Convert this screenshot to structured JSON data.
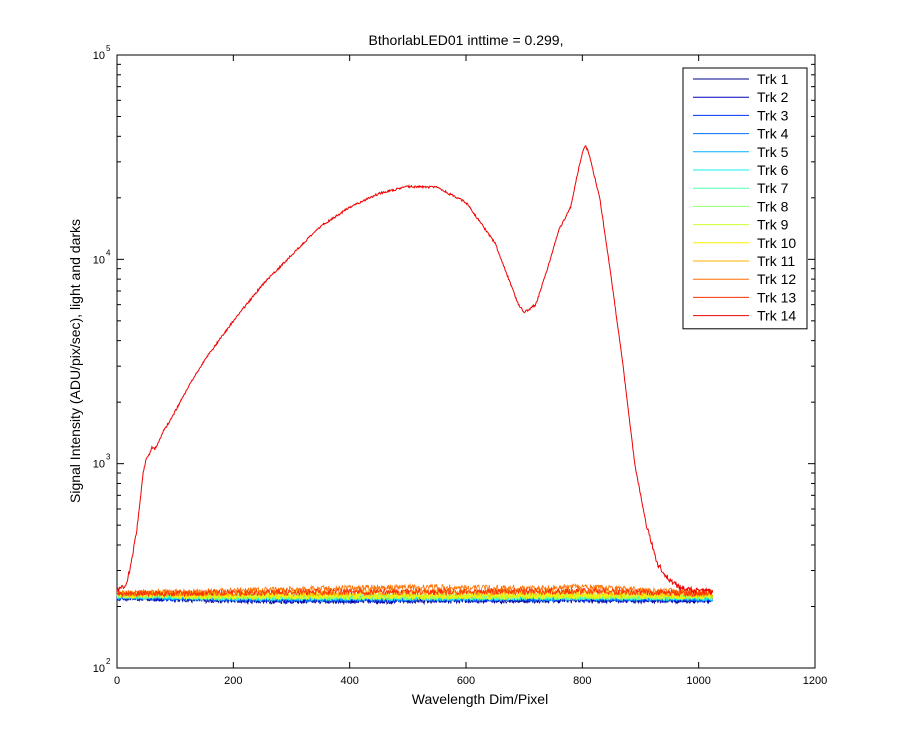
{
  "chart_data": {
    "type": "line",
    "title": "BthorlabLED01 inttime = 0.299,",
    "xlabel": "Wavelength Dim/Pixel",
    "ylabel": "Signal Intensity (ADU/pix/sec), light and darks",
    "xlim": [
      0,
      1200
    ],
    "ylim": [
      100,
      100000
    ],
    "yscale": "log",
    "grid": false,
    "legend_position": "top-right",
    "xticks": [
      "0",
      "200",
      "400",
      "600",
      "800",
      "1000",
      "1200"
    ],
    "yticks": [
      {
        "base": "10",
        "exp": "2"
      },
      {
        "base": "10",
        "exp": "3"
      },
      {
        "base": "10",
        "exp": "4"
      },
      {
        "base": "10",
        "exp": "5"
      }
    ],
    "series": [
      {
        "name": "Trk 1",
        "color": "#00008f",
        "points": [
          [
            0,
            221
          ],
          [
            200,
            214
          ],
          [
            400,
            213
          ],
          [
            600,
            214
          ],
          [
            800,
            215
          ],
          [
            1024,
            214
          ]
        ]
      },
      {
        "name": "Trk 2",
        "color": "#0000bf",
        "points": [
          [
            0,
            223
          ],
          [
            200,
            216
          ],
          [
            400,
            215
          ],
          [
            600,
            216
          ],
          [
            800,
            217
          ],
          [
            1024,
            216
          ]
        ]
      },
      {
        "name": "Trk 3",
        "color": "#0030ff",
        "points": [
          [
            0,
            222
          ],
          [
            200,
            218
          ],
          [
            400,
            217
          ],
          [
            600,
            218
          ],
          [
            800,
            218
          ],
          [
            1024,
            217
          ]
        ]
      },
      {
        "name": "Trk 4",
        "color": "#0070ff",
        "points": [
          [
            0,
            224
          ],
          [
            200,
            219
          ],
          [
            400,
            218
          ],
          [
            600,
            219
          ],
          [
            800,
            220
          ],
          [
            1024,
            219
          ]
        ]
      },
      {
        "name": "Trk 5",
        "color": "#00b0ff",
        "points": [
          [
            0,
            225
          ],
          [
            200,
            220
          ],
          [
            400,
            220
          ],
          [
            600,
            220
          ],
          [
            800,
            221
          ],
          [
            1024,
            220
          ]
        ]
      },
      {
        "name": "Trk 6",
        "color": "#10f0ef",
        "points": [
          [
            0,
            226
          ],
          [
            200,
            221
          ],
          [
            400,
            221
          ],
          [
            600,
            221
          ],
          [
            800,
            222
          ],
          [
            1024,
            221
          ]
        ]
      },
      {
        "name": "Trk 7",
        "color": "#50ffaf",
        "points": [
          [
            0,
            226
          ],
          [
            200,
            222
          ],
          [
            400,
            222
          ],
          [
            600,
            222
          ],
          [
            800,
            223
          ],
          [
            1024,
            222
          ]
        ]
      },
      {
        "name": "Trk 8",
        "color": "#90ff6f",
        "points": [
          [
            0,
            227
          ],
          [
            200,
            223
          ],
          [
            400,
            223
          ],
          [
            600,
            223
          ],
          [
            800,
            224
          ],
          [
            1024,
            223
          ]
        ]
      },
      {
        "name": "Trk 9",
        "color": "#d0ff2f",
        "points": [
          [
            0,
            228
          ],
          [
            200,
            224
          ],
          [
            400,
            224
          ],
          [
            600,
            224
          ],
          [
            800,
            225
          ],
          [
            1024,
            224
          ]
        ]
      },
      {
        "name": "Trk 10",
        "color": "#ffef00",
        "points": [
          [
            0,
            229
          ],
          [
            200,
            225
          ],
          [
            400,
            225
          ],
          [
            600,
            225
          ],
          [
            800,
            226
          ],
          [
            1024,
            225
          ]
        ]
      },
      {
        "name": "Trk 11",
        "color": "#ffaf00",
        "points": [
          [
            0,
            232
          ],
          [
            200,
            232
          ],
          [
            400,
            234
          ],
          [
            600,
            234
          ],
          [
            800,
            236
          ],
          [
            1024,
            230
          ]
        ]
      },
      {
        "name": "Trk 12",
        "color": "#ff6f00",
        "points": [
          [
            0,
            233
          ],
          [
            100,
            235
          ],
          [
            200,
            238
          ],
          [
            300,
            242
          ],
          [
            400,
            246
          ],
          [
            500,
            248
          ],
          [
            600,
            247
          ],
          [
            700,
            245
          ],
          [
            790,
            249
          ],
          [
            850,
            245
          ],
          [
            950,
            238
          ],
          [
            1024,
            233
          ]
        ]
      },
      {
        "name": "Trk 13",
        "color": "#ff2f00",
        "points": [
          [
            0,
            231
          ],
          [
            200,
            233
          ],
          [
            400,
            236
          ],
          [
            600,
            236
          ],
          [
            800,
            238
          ],
          [
            1024,
            231
          ]
        ]
      },
      {
        "name": "Trk 14",
        "color": "#ef0000",
        "points": [
          [
            0,
            240
          ],
          [
            15,
            250
          ],
          [
            25,
            330
          ],
          [
            35,
            500
          ],
          [
            45,
            900
          ],
          [
            50,
            1050
          ],
          [
            55,
            1100
          ],
          [
            60,
            1200
          ],
          [
            65,
            1180
          ],
          [
            70,
            1250
          ],
          [
            80,
            1450
          ],
          [
            90,
            1600
          ],
          [
            100,
            1800
          ],
          [
            120,
            2300
          ],
          [
            150,
            3200
          ],
          [
            200,
            5000
          ],
          [
            250,
            7500
          ],
          [
            300,
            10500
          ],
          [
            350,
            14500
          ],
          [
            400,
            18000
          ],
          [
            450,
            21000
          ],
          [
            500,
            22700
          ],
          [
            550,
            22500
          ],
          [
            600,
            19000
          ],
          [
            650,
            12000
          ],
          [
            690,
            6000
          ],
          [
            700,
            5500
          ],
          [
            720,
            6000
          ],
          [
            740,
            9000
          ],
          [
            760,
            14000
          ],
          [
            780,
            18000
          ],
          [
            790,
            25000
          ],
          [
            800,
            33000
          ],
          [
            805,
            36000
          ],
          [
            810,
            34000
          ],
          [
            830,
            20000
          ],
          [
            850,
            8000
          ],
          [
            870,
            3000
          ],
          [
            890,
            1000
          ],
          [
            910,
            500
          ],
          [
            930,
            320
          ],
          [
            950,
            270
          ],
          [
            970,
            245
          ],
          [
            1000,
            238
          ],
          [
            1024,
            238
          ]
        ]
      }
    ]
  }
}
